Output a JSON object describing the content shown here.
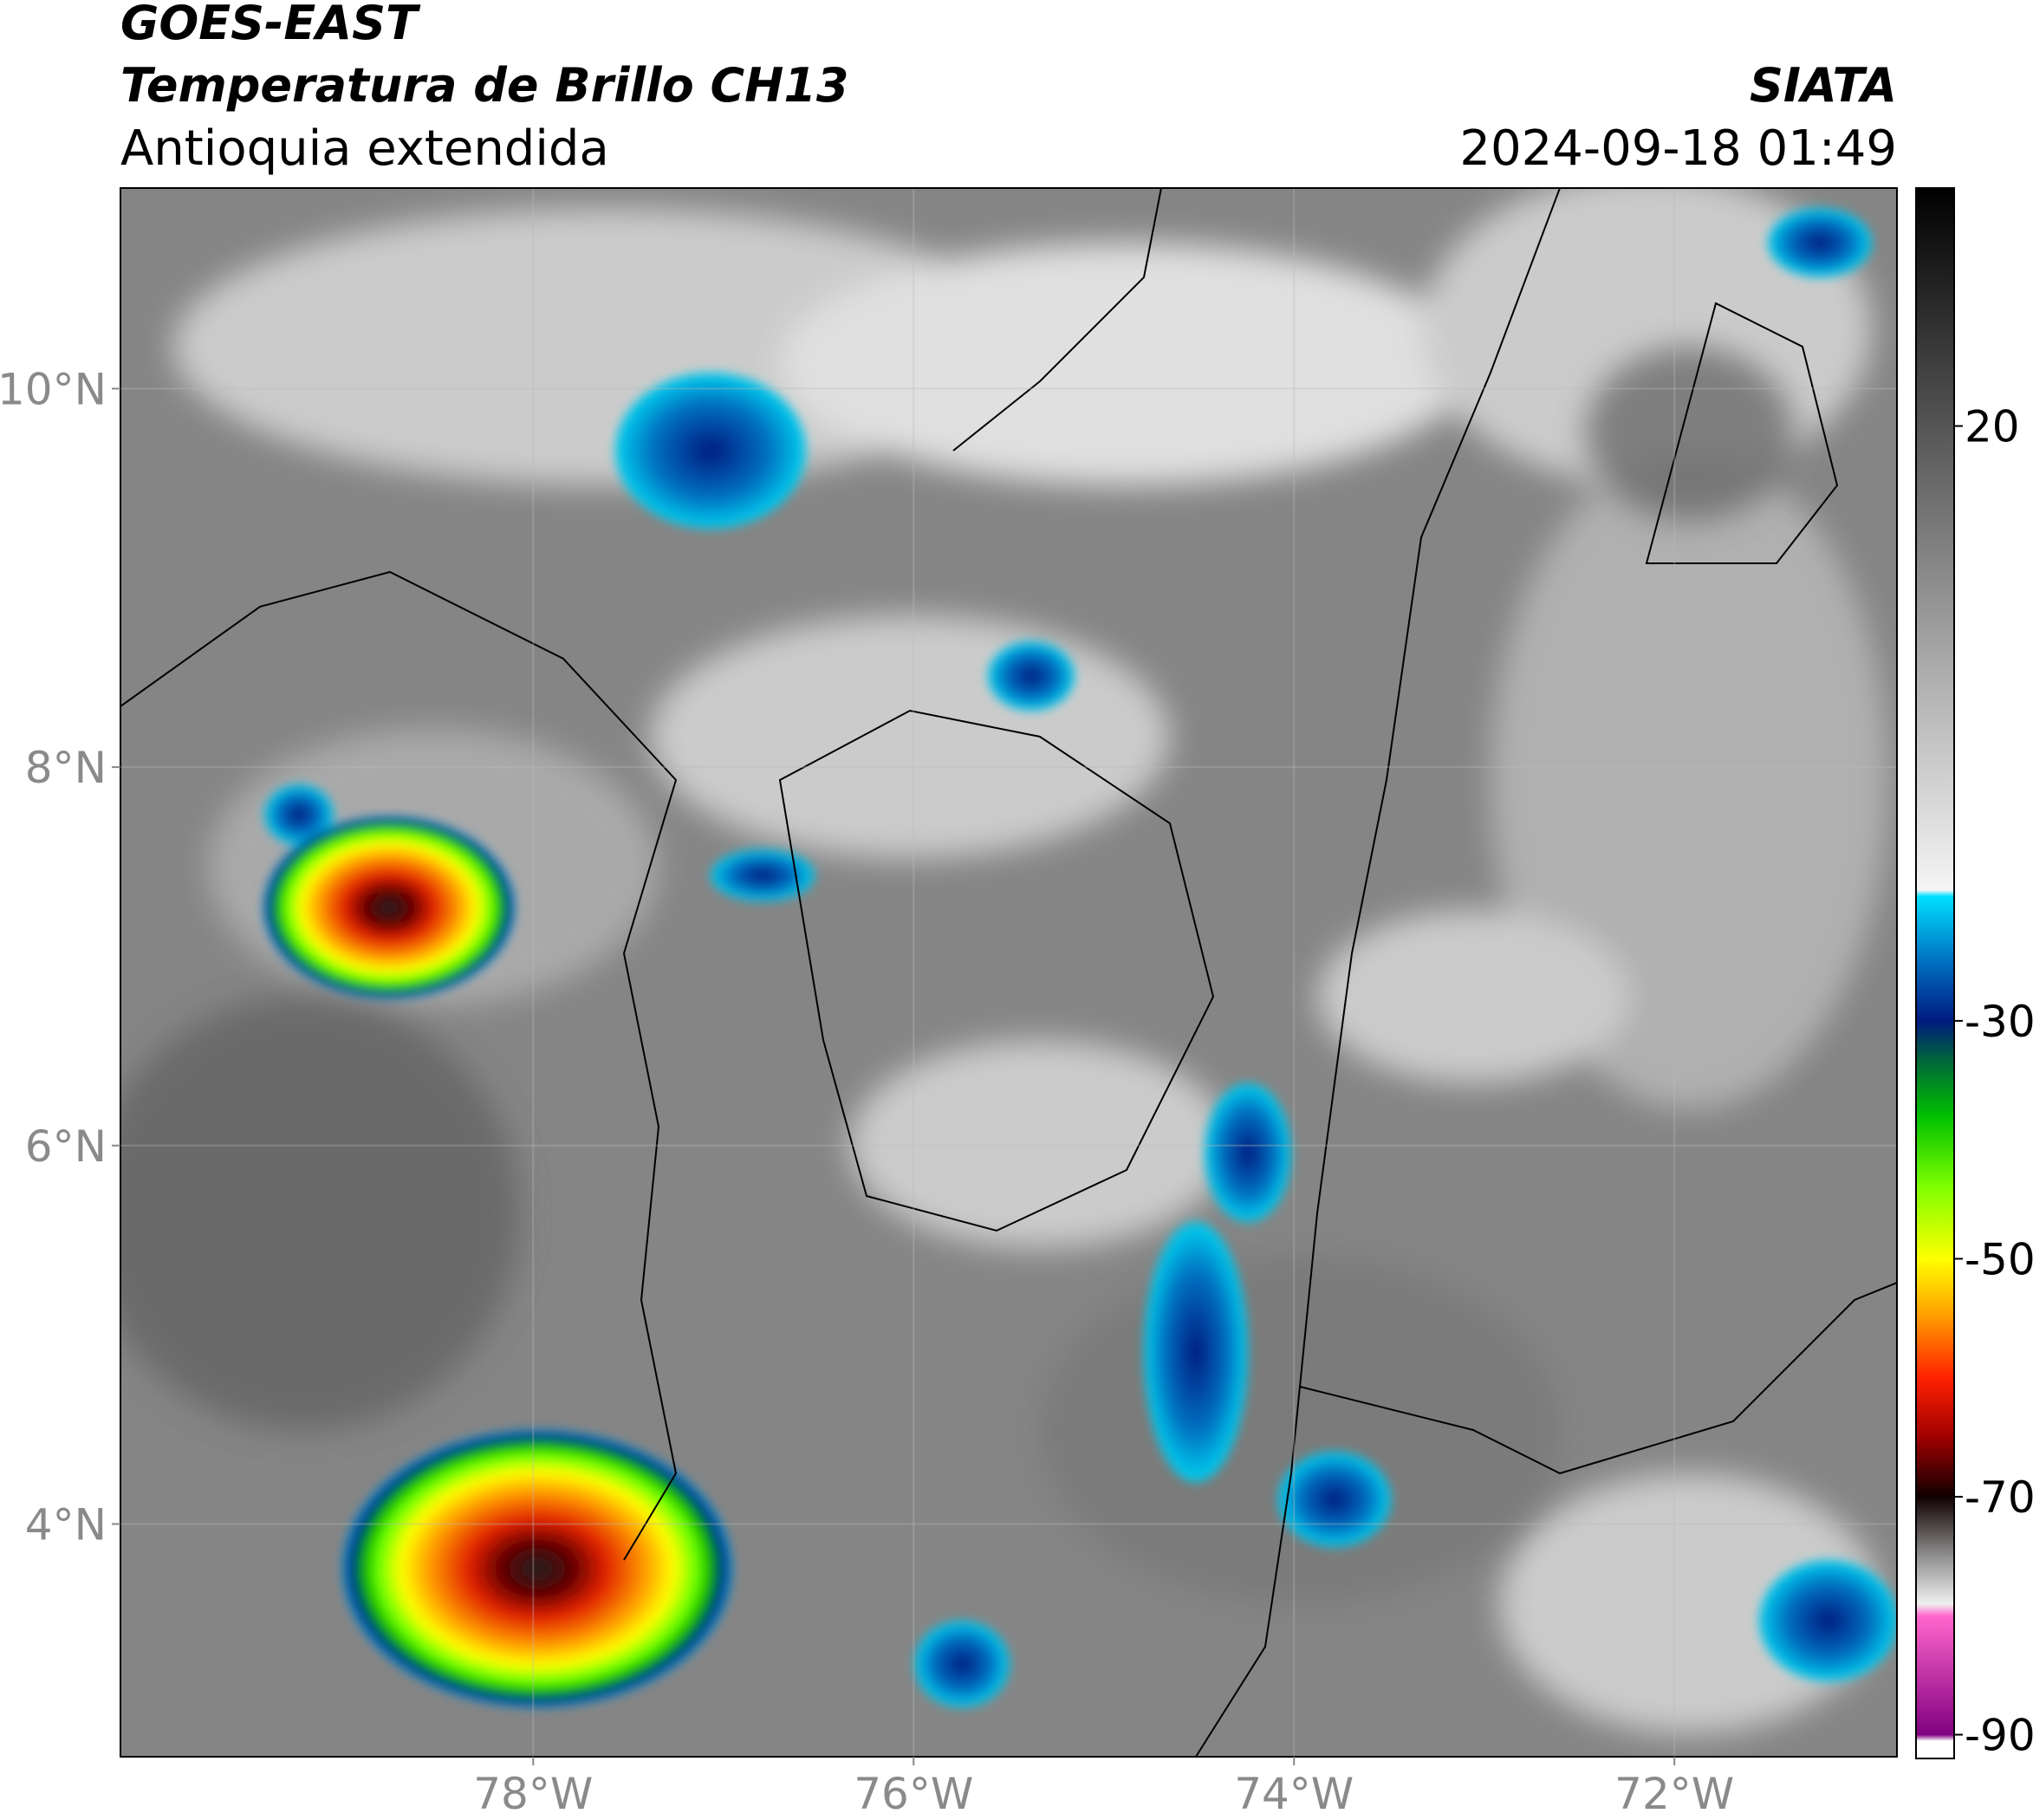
{
  "header": {
    "title": "GOES-EAST",
    "subtitle": "Temperatura de Brillo CH13",
    "region": "Antioquia extendida",
    "source": "SIATA",
    "datetime": "2024-09-18 01:49"
  },
  "map": {
    "xlim": [
      -80.17,
      -70.83
    ],
    "ylim": [
      2.77,
      11.06
    ],
    "xticks": [
      {
        "value": -78,
        "label": "78°W"
      },
      {
        "value": -76,
        "label": "76°W"
      },
      {
        "value": -74,
        "label": "74°W"
      },
      {
        "value": -72,
        "label": "72°W"
      }
    ],
    "yticks": [
      {
        "value": 10,
        "label": "10°N"
      },
      {
        "value": 8,
        "label": "8°N"
      },
      {
        "value": 6,
        "label": "6°N"
      },
      {
        "value": 4,
        "label": "4°N"
      }
    ],
    "grid": true
  },
  "colorbar": {
    "lim": [
      -92,
      40
    ],
    "ticks": [
      20,
      -30,
      -50,
      -70,
      -90
    ],
    "stops": [
      {
        "value": 40,
        "color": "#000000"
      },
      {
        "value": 20,
        "color": "#555555"
      },
      {
        "value": 0,
        "color": "#aaaaaa"
      },
      {
        "value": -19,
        "color": "#f5f5f5"
      },
      {
        "value": -19.5,
        "color": "#00e0ff"
      },
      {
        "value": -25,
        "color": "#0070c0"
      },
      {
        "value": -30,
        "color": "#001a80"
      },
      {
        "value": -33,
        "color": "#006040"
      },
      {
        "value": -38,
        "color": "#00c000"
      },
      {
        "value": -44,
        "color": "#80ff00"
      },
      {
        "value": -50,
        "color": "#ffff00"
      },
      {
        "value": -55,
        "color": "#ff9900"
      },
      {
        "value": -60,
        "color": "#ff2000"
      },
      {
        "value": -65,
        "color": "#a00000"
      },
      {
        "value": -70,
        "color": "#100000"
      },
      {
        "value": -75,
        "color": "#909090"
      },
      {
        "value": -79,
        "color": "#f0f0f0"
      },
      {
        "value": -80,
        "color": "#ff66cc"
      },
      {
        "value": -90,
        "color": "#800080"
      },
      {
        "value": -90.5,
        "color": "#ffffff"
      },
      {
        "value": -92,
        "color": "#ffffff"
      }
    ]
  }
}
